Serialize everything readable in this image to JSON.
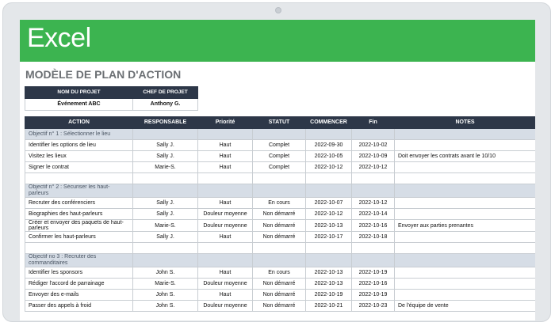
{
  "app": {
    "title": "Excel",
    "brand_color": "#3cb450",
    "header_color": "#2d3748"
  },
  "page_title": "MODÈLE DE PLAN D'ACTION",
  "project": {
    "headers": [
      "NOM DU PROJET",
      "CHEF DE PROJET"
    ],
    "values": [
      "Événement ABC",
      "Anthony G."
    ]
  },
  "table": {
    "headers": [
      "ACTION",
      "RESPONSABLE",
      "Priorité",
      "STATUT",
      "COMMENCER",
      "Fin",
      "NOTES"
    ],
    "objectives": [
      {
        "label": "Objectif n° 1 : Sélectionner le lieu",
        "rows": [
          [
            "Identifier les options de lieu",
            "Sally J.",
            "Haut",
            "Complet",
            "2022-09-30",
            "2022-10-02",
            ""
          ],
          [
            "Visitez les lieux",
            "Sally J.",
            "Haut",
            "Complet",
            "2022-10-05",
            "2022-10-09",
            "Doit envoyer les contrats avant le 10/10"
          ],
          [
            "Signer le contrat",
            "Marie-S.",
            "Haut",
            "Complet",
            "2022-10-12",
            "2022-10-12",
            ""
          ]
        ]
      },
      {
        "label": "Objectif n° 2 : Sécuriser les haut-parleurs",
        "rows": [
          [
            "Recruter des conférenciers",
            "Sally J.",
            "Haut",
            "En cours",
            "2022-10-07",
            "2022-10-12",
            ""
          ],
          [
            "Biographies des haut-parleurs",
            "Sally J.",
            "Douleur moyenne",
            "Non démarré",
            "2022-10-12",
            "2022-10-14",
            ""
          ],
          [
            "Créer et envoyer des paquets de haut-parleurs",
            "Marie-S.",
            "Douleur moyenne",
            "Non démarré",
            "2022-10-13",
            "2022-10-16",
            "Envoyer aux parties prenantes"
          ],
          [
            "Confirmer les haut-parleurs",
            "Sally J.",
            "Haut",
            "Non démarré",
            "2022-10-17",
            "2022-10-18",
            ""
          ]
        ]
      },
      {
        "label": "Objectif no 3 : Recruter des commanditaires",
        "rows": [
          [
            "Identifier les sponsors",
            "John S.",
            "Haut",
            "En cours",
            "2022-10-13",
            "2022-10-19",
            ""
          ],
          [
            "Rédiger l'accord de parrainage",
            "Marie-S.",
            "Douleur moyenne",
            "Non démarré",
            "2022-10-13",
            "2022-10-16",
            ""
          ],
          [
            "Envoyer des e-mails",
            "John S.",
            "Haut",
            "Non démarré",
            "2022-10-19",
            "2022-10-19",
            ""
          ],
          [
            "Passer des appels à froid",
            "John S.",
            "Douleur moyenne",
            "Non démarré",
            "2022-10-21",
            "2022-10-23",
            "De l'équipe de vente"
          ]
        ]
      }
    ]
  }
}
